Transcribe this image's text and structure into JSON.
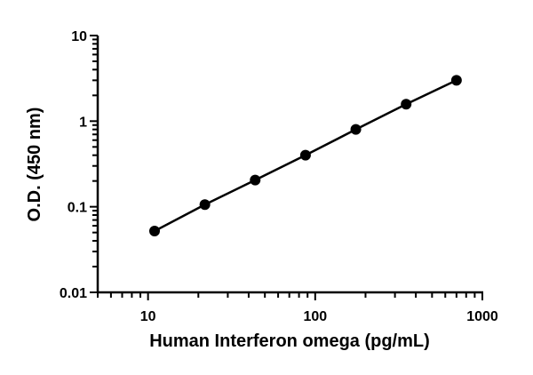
{
  "chart_data": {
    "type": "line",
    "title": "",
    "xlabel": "Human Interferon omega (pg/mL)",
    "ylabel": "O.D. (450 nm)",
    "xscale": "log",
    "yscale": "log",
    "xlim": [
      5,
      1000
    ],
    "ylim": [
      0.01,
      10
    ],
    "xticks": [
      "10",
      "100",
      "1000"
    ],
    "yticks": [
      "0.01",
      "0.1",
      "1",
      "10"
    ],
    "grid": false,
    "markers": "filled circles",
    "color": "#000000",
    "series": [
      {
        "x": [
          10.94,
          21.88,
          43.75,
          87.5,
          175,
          350,
          700
        ],
        "y": [
          0.052,
          0.106,
          0.205,
          0.4,
          0.8,
          1.58,
          3.0
        ]
      }
    ]
  }
}
